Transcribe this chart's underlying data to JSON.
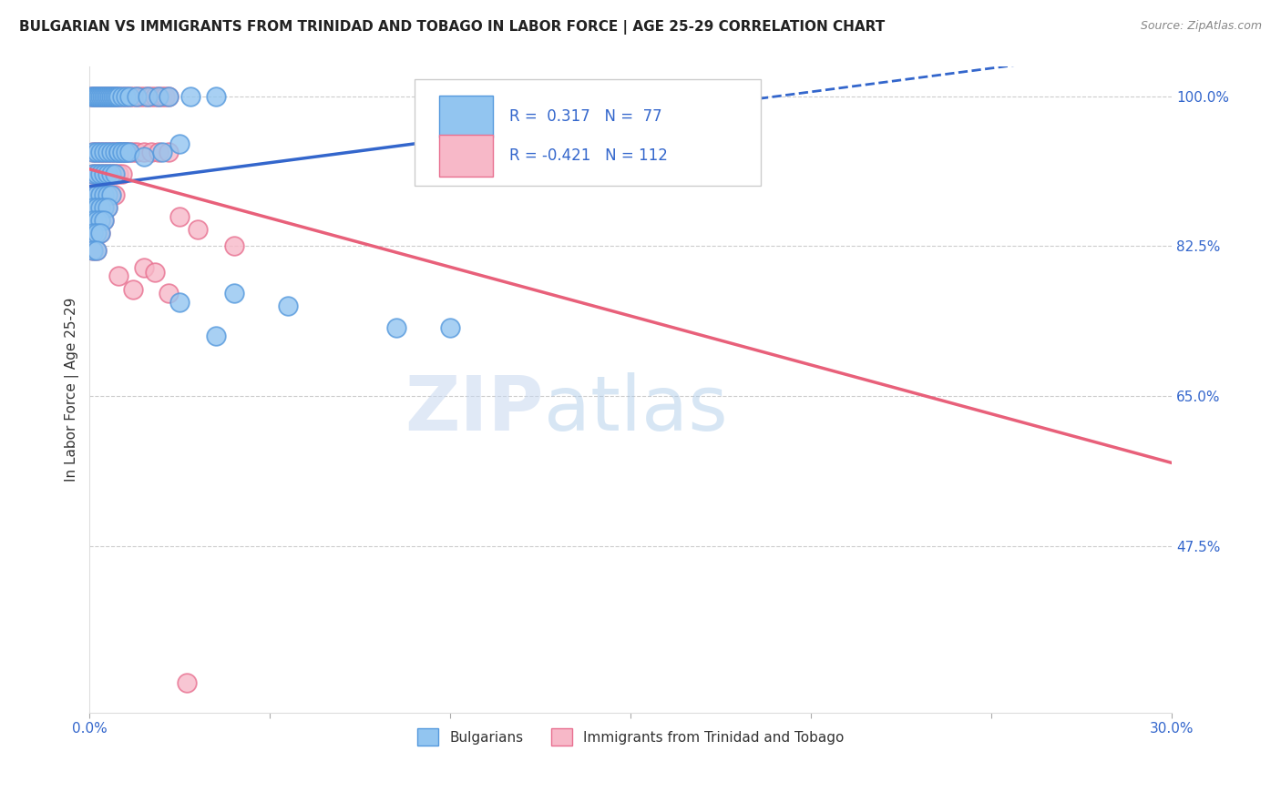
{
  "title": "BULGARIAN VS IMMIGRANTS FROM TRINIDAD AND TOBAGO IN LABOR FORCE | AGE 25-29 CORRELATION CHART",
  "source": "Source: ZipAtlas.com",
  "ylabel": "In Labor Force | Age 25-29",
  "ylabel_right_ticks": [
    "100.0%",
    "82.5%",
    "65.0%",
    "47.5%"
  ],
  "ylabel_right_vals": [
    1.0,
    0.825,
    0.65,
    0.475
  ],
  "xmin": 0.0,
  "xmax": 0.3,
  "ymin": 0.28,
  "ymax": 1.035,
  "blue_R": 0.317,
  "blue_N": 77,
  "pink_R": -0.421,
  "pink_N": 112,
  "blue_color": "#92C5F0",
  "pink_color": "#F7B8C8",
  "blue_edge_color": "#5599DD",
  "pink_edge_color": "#E87090",
  "blue_line_color": "#3366CC",
  "pink_line_color": "#E8607A",
  "watermark_zip": "ZIP",
  "watermark_atlas": "atlas",
  "legend_label_blue": "Bulgarians",
  "legend_label_pink": "Immigrants from Trinidad and Tobago",
  "blue_trend_x0": 0.0,
  "blue_trend_y0": 0.895,
  "blue_trend_x1": 0.145,
  "blue_trend_y1": 0.975,
  "pink_trend_x0": 0.0,
  "pink_trend_y0": 0.915,
  "pink_trend_x1": 0.3,
  "pink_trend_y1": 0.572,
  "blue_scatter_x": [
    0.0005,
    0.001,
    0.0015,
    0.002,
    0.0025,
    0.003,
    0.0035,
    0.004,
    0.0045,
    0.005,
    0.0055,
    0.006,
    0.0065,
    0.007,
    0.0075,
    0.008,
    0.009,
    0.01,
    0.011,
    0.013,
    0.016,
    0.019,
    0.022,
    0.028,
    0.035,
    0.001,
    0.002,
    0.003,
    0.004,
    0.005,
    0.006,
    0.007,
    0.008,
    0.009,
    0.01,
    0.001,
    0.002,
    0.003,
    0.004,
    0.005,
    0.006,
    0.007,
    0.001,
    0.002,
    0.003,
    0.004,
    0.005,
    0.006,
    0.001,
    0.002,
    0.003,
    0.004,
    0.005,
    0.001,
    0.002,
    0.003,
    0.004,
    0.001,
    0.002,
    0.003,
    0.001,
    0.002,
    0.008,
    0.009,
    0.01,
    0.011,
    0.015,
    0.02,
    0.025,
    0.04,
    0.055,
    0.085,
    0.1,
    0.025,
    0.035
  ],
  "blue_scatter_y": [
    1.0,
    1.0,
    1.0,
    1.0,
    1.0,
    1.0,
    1.0,
    1.0,
    1.0,
    1.0,
    1.0,
    1.0,
    1.0,
    1.0,
    1.0,
    1.0,
    1.0,
    1.0,
    1.0,
    1.0,
    1.0,
    1.0,
    1.0,
    1.0,
    1.0,
    0.935,
    0.935,
    0.935,
    0.935,
    0.935,
    0.935,
    0.935,
    0.935,
    0.935,
    0.935,
    0.91,
    0.91,
    0.91,
    0.91,
    0.91,
    0.91,
    0.91,
    0.885,
    0.885,
    0.885,
    0.885,
    0.885,
    0.885,
    0.87,
    0.87,
    0.87,
    0.87,
    0.87,
    0.855,
    0.855,
    0.855,
    0.855,
    0.84,
    0.84,
    0.84,
    0.82,
    0.82,
    0.935,
    0.935,
    0.935,
    0.935,
    0.93,
    0.935,
    0.945,
    0.77,
    0.755,
    0.73,
    0.73,
    0.76,
    0.72
  ],
  "pink_scatter_x": [
    0.0005,
    0.001,
    0.0015,
    0.002,
    0.0025,
    0.003,
    0.0035,
    0.004,
    0.0045,
    0.005,
    0.0055,
    0.006,
    0.0065,
    0.007,
    0.0075,
    0.008,
    0.009,
    0.01,
    0.011,
    0.012,
    0.013,
    0.014,
    0.015,
    0.016,
    0.017,
    0.018,
    0.019,
    0.02,
    0.021,
    0.022,
    0.001,
    0.002,
    0.003,
    0.004,
    0.005,
    0.006,
    0.007,
    0.008,
    0.009,
    0.01,
    0.011,
    0.012,
    0.013,
    0.015,
    0.017,
    0.019,
    0.022,
    0.001,
    0.002,
    0.003,
    0.004,
    0.005,
    0.006,
    0.007,
    0.008,
    0.009,
    0.001,
    0.002,
    0.003,
    0.004,
    0.005,
    0.006,
    0.007,
    0.001,
    0.002,
    0.003,
    0.004,
    0.005,
    0.001,
    0.002,
    0.003,
    0.004,
    0.001,
    0.002,
    0.003,
    0.001,
    0.002,
    0.025,
    0.03,
    0.04,
    0.015,
    0.018,
    0.022,
    0.008,
    0.012,
    0.027
  ],
  "pink_scatter_y": [
    1.0,
    1.0,
    1.0,
    1.0,
    1.0,
    1.0,
    1.0,
    1.0,
    1.0,
    1.0,
    1.0,
    1.0,
    1.0,
    1.0,
    1.0,
    1.0,
    1.0,
    1.0,
    1.0,
    1.0,
    1.0,
    1.0,
    1.0,
    1.0,
    1.0,
    1.0,
    1.0,
    1.0,
    1.0,
    1.0,
    0.935,
    0.935,
    0.935,
    0.935,
    0.935,
    0.935,
    0.935,
    0.935,
    0.935,
    0.935,
    0.935,
    0.935,
    0.935,
    0.935,
    0.935,
    0.935,
    0.935,
    0.91,
    0.91,
    0.91,
    0.91,
    0.91,
    0.91,
    0.91,
    0.91,
    0.91,
    0.885,
    0.885,
    0.885,
    0.885,
    0.885,
    0.885,
    0.885,
    0.87,
    0.87,
    0.87,
    0.87,
    0.87,
    0.855,
    0.855,
    0.855,
    0.855,
    0.84,
    0.84,
    0.84,
    0.82,
    0.82,
    0.86,
    0.845,
    0.825,
    0.8,
    0.795,
    0.77,
    0.79,
    0.775,
    0.315
  ]
}
